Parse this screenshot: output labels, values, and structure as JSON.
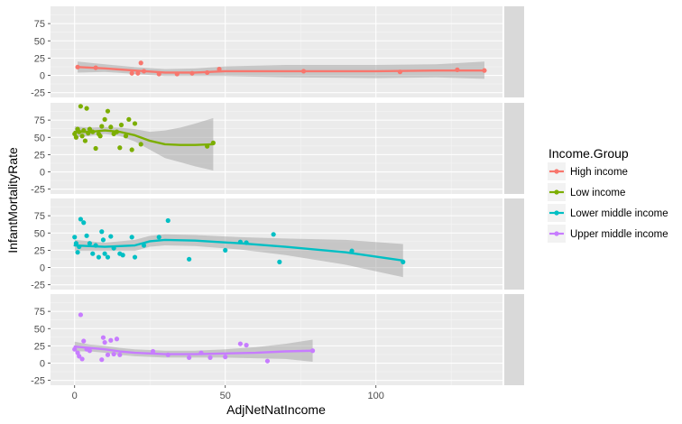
{
  "chart_data": {
    "type": "scatter",
    "xlabel": "AdjNetNatIncome",
    "ylabel": "InfantMortalityRate",
    "xlim": [
      -8,
      142
    ],
    "ylim": [
      -32,
      100
    ],
    "x_ticks": [
      0,
      50,
      100
    ],
    "y_ticks": [
      -25,
      0,
      25,
      50,
      75
    ],
    "legend": {
      "title": "Income.Group",
      "placement": "right"
    },
    "grid": true,
    "panels": [
      {
        "name": "High income",
        "color": "#F8766D",
        "points": [
          [
            1,
            12
          ],
          [
            7,
            11
          ],
          [
            19,
            3
          ],
          [
            21,
            3
          ],
          [
            22,
            18
          ],
          [
            23,
            6
          ],
          [
            28,
            2
          ],
          [
            34,
            2
          ],
          [
            39,
            3
          ],
          [
            44,
            4
          ],
          [
            48,
            9
          ],
          [
            76,
            6
          ],
          [
            108,
            5
          ],
          [
            127,
            8
          ],
          [
            136,
            7
          ]
        ],
        "trend": [
          [
            1,
            12
          ],
          [
            10,
            10
          ],
          [
            20,
            7
          ],
          [
            30,
            4
          ],
          [
            40,
            4
          ],
          [
            50,
            6
          ],
          [
            70,
            6
          ],
          [
            100,
            6
          ],
          [
            120,
            7
          ],
          [
            136,
            7
          ]
        ],
        "band": [
          [
            1,
            20,
            4
          ],
          [
            10,
            16,
            5
          ],
          [
            20,
            12,
            2
          ],
          [
            30,
            9,
            -1
          ],
          [
            40,
            10,
            -1
          ],
          [
            50,
            13,
            -1
          ],
          [
            70,
            15,
            -3
          ],
          [
            100,
            15,
            -4
          ],
          [
            120,
            16,
            -3
          ],
          [
            136,
            20,
            -5
          ]
        ]
      },
      {
        "name": "Low income",
        "color": "#7CAE00",
        "points": [
          [
            0,
            55
          ],
          [
            0.5,
            50
          ],
          [
            1,
            62
          ],
          [
            1.5,
            58
          ],
          [
            2,
            95
          ],
          [
            2.5,
            52
          ],
          [
            3,
            60
          ],
          [
            3.5,
            45
          ],
          [
            4,
            92
          ],
          [
            4.5,
            56
          ],
          [
            5,
            62
          ],
          [
            6,
            58
          ],
          [
            7,
            34
          ],
          [
            8,
            55
          ],
          [
            8.5,
            52
          ],
          [
            9,
            66
          ],
          [
            10,
            76
          ],
          [
            11,
            88
          ],
          [
            12,
            65
          ],
          [
            13,
            55
          ],
          [
            14,
            58
          ],
          [
            15,
            35
          ],
          [
            15.5,
            68
          ],
          [
            17,
            52
          ],
          [
            18,
            76
          ],
          [
            19,
            32
          ],
          [
            20,
            70
          ],
          [
            22,
            40
          ],
          [
            44,
            37
          ],
          [
            46,
            42
          ]
        ],
        "trend": [
          [
            0,
            58
          ],
          [
            5,
            58
          ],
          [
            10,
            60
          ],
          [
            15,
            58
          ],
          [
            20,
            53
          ],
          [
            25,
            45
          ],
          [
            30,
            40
          ],
          [
            35,
            39
          ],
          [
            40,
            39
          ],
          [
            46,
            40
          ]
        ],
        "band": [
          [
            0,
            66,
            50
          ],
          [
            5,
            64,
            52
          ],
          [
            10,
            65,
            55
          ],
          [
            15,
            64,
            52
          ],
          [
            20,
            62,
            44
          ],
          [
            25,
            58,
            32
          ],
          [
            30,
            60,
            20
          ],
          [
            35,
            64,
            14
          ],
          [
            40,
            70,
            8
          ],
          [
            46,
            78,
            2
          ]
        ]
      },
      {
        "name": "Lower middle income",
        "color": "#00BFC4",
        "points": [
          [
            0,
            44
          ],
          [
            0.5,
            35
          ],
          [
            1,
            22
          ],
          [
            1.5,
            30
          ],
          [
            2,
            70
          ],
          [
            3,
            65
          ],
          [
            4,
            46
          ],
          [
            5,
            35
          ],
          [
            6,
            20
          ],
          [
            7,
            32
          ],
          [
            8,
            15
          ],
          [
            9,
            52
          ],
          [
            9.5,
            40
          ],
          [
            10,
            20
          ],
          [
            11,
            15
          ],
          [
            12,
            45
          ],
          [
            13,
            28
          ],
          [
            15,
            20
          ],
          [
            16,
            18
          ],
          [
            19,
            44
          ],
          [
            20,
            15
          ],
          [
            23,
            32
          ],
          [
            28,
            44
          ],
          [
            31,
            68
          ],
          [
            38,
            12
          ],
          [
            50,
            25
          ],
          [
            55,
            37
          ],
          [
            57,
            36
          ],
          [
            66,
            48
          ],
          [
            68,
            8
          ],
          [
            92,
            24
          ],
          [
            109,
            8
          ]
        ],
        "trend": [
          [
            0,
            32
          ],
          [
            10,
            30
          ],
          [
            20,
            32
          ],
          [
            25,
            38
          ],
          [
            30,
            40
          ],
          [
            40,
            39
          ],
          [
            55,
            35
          ],
          [
            70,
            30
          ],
          [
            90,
            22
          ],
          [
            109,
            10
          ]
        ],
        "band": [
          [
            0,
            40,
            24
          ],
          [
            10,
            36,
            24
          ],
          [
            20,
            40,
            24
          ],
          [
            25,
            46,
            30
          ],
          [
            30,
            48,
            32
          ],
          [
            40,
            47,
            31
          ],
          [
            55,
            44,
            26
          ],
          [
            70,
            42,
            18
          ],
          [
            90,
            40,
            4
          ],
          [
            109,
            34,
            -14
          ]
        ]
      },
      {
        "name": "Upper middle income",
        "color": "#C77CFF",
        "points": [
          [
            0,
            20
          ],
          [
            1,
            15
          ],
          [
            1.5,
            10
          ],
          [
            2,
            70
          ],
          [
            2.5,
            6
          ],
          [
            3,
            32
          ],
          [
            4,
            20
          ],
          [
            5,
            18
          ],
          [
            9,
            5
          ],
          [
            9.5,
            37
          ],
          [
            10,
            30
          ],
          [
            11,
            12
          ],
          [
            12,
            33
          ],
          [
            13,
            13
          ],
          [
            14,
            35
          ],
          [
            15,
            12
          ],
          [
            26,
            17
          ],
          [
            31,
            12
          ],
          [
            38,
            8
          ],
          [
            42,
            15
          ],
          [
            45,
            8
          ],
          [
            50,
            9
          ],
          [
            55,
            28
          ],
          [
            57,
            26
          ],
          [
            64,
            3
          ],
          [
            79,
            18
          ]
        ],
        "trend": [
          [
            0,
            24
          ],
          [
            5,
            22
          ],
          [
            10,
            20
          ],
          [
            15,
            17
          ],
          [
            20,
            15
          ],
          [
            30,
            13
          ],
          [
            40,
            13
          ],
          [
            50,
            14
          ],
          [
            60,
            15
          ],
          [
            70,
            17
          ],
          [
            79,
            18
          ]
        ],
        "band": [
          [
            0,
            31,
            17
          ],
          [
            5,
            27,
            17
          ],
          [
            10,
            25,
            15
          ],
          [
            15,
            22,
            12
          ],
          [
            20,
            20,
            10
          ],
          [
            30,
            18,
            8
          ],
          [
            40,
            18,
            8
          ],
          [
            50,
            20,
            8
          ],
          [
            60,
            23,
            7
          ],
          [
            70,
            28,
            6
          ],
          [
            79,
            34,
            2
          ]
        ]
      }
    ]
  }
}
